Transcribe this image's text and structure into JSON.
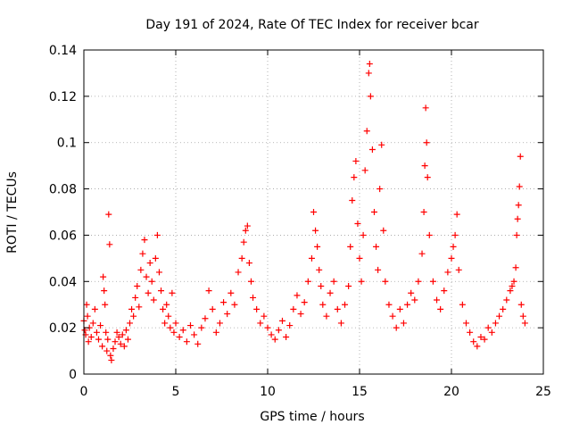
{
  "chart_data": {
    "type": "scatter",
    "title": "Day 191 of 2024, Rate Of TEC Index for receiver bcar",
    "xlabel": "GPS time / hours",
    "ylabel": "ROTI / TECUs",
    "xlim": [
      0,
      25
    ],
    "ylim": [
      0,
      0.14
    ],
    "xticks": [
      0,
      5,
      10,
      15,
      20,
      25
    ],
    "yticks": [
      0,
      0.02,
      0.04,
      0.06,
      0.08,
      0.1,
      0.12,
      0.14
    ],
    "xtick_labels": [
      "0",
      "5",
      "10",
      "15",
      "20",
      "25"
    ],
    "ytick_labels": [
      "0",
      "0.02",
      "0.04",
      "0.06",
      "0.08",
      "0.1",
      "0.12",
      "0.14"
    ],
    "grid": true,
    "marker": "+",
    "marker_color": "#ff0000",
    "series": [
      {
        "points": [
          [
            0.0,
            0.023
          ],
          [
            0.05,
            0.019
          ],
          [
            0.1,
            0.017
          ],
          [
            0.15,
            0.03
          ],
          [
            0.2,
            0.025
          ],
          [
            0.25,
            0.014
          ],
          [
            0.3,
            0.02
          ],
          [
            0.4,
            0.016
          ],
          [
            0.5,
            0.022
          ],
          [
            0.6,
            0.028
          ],
          [
            0.7,
            0.018
          ],
          [
            0.8,
            0.015
          ],
          [
            0.9,
            0.021
          ],
          [
            1.0,
            0.012
          ],
          [
            1.05,
            0.042
          ],
          [
            1.1,
            0.036
          ],
          [
            1.15,
            0.03
          ],
          [
            1.2,
            0.018
          ],
          [
            1.25,
            0.01
          ],
          [
            1.3,
            0.015
          ],
          [
            1.35,
            0.069
          ],
          [
            1.4,
            0.056
          ],
          [
            1.45,
            0.008
          ],
          [
            1.5,
            0.006
          ],
          [
            1.6,
            0.011
          ],
          [
            1.7,
            0.014
          ],
          [
            1.8,
            0.018
          ],
          [
            1.9,
            0.016
          ],
          [
            2.0,
            0.013
          ],
          [
            2.1,
            0.017
          ],
          [
            2.2,
            0.012
          ],
          [
            2.3,
            0.019
          ],
          [
            2.4,
            0.015
          ],
          [
            2.5,
            0.022
          ],
          [
            2.6,
            0.028
          ],
          [
            2.7,
            0.025
          ],
          [
            2.8,
            0.033
          ],
          [
            2.9,
            0.038
          ],
          [
            3.0,
            0.029
          ],
          [
            3.1,
            0.045
          ],
          [
            3.2,
            0.052
          ],
          [
            3.3,
            0.058
          ],
          [
            3.4,
            0.042
          ],
          [
            3.5,
            0.035
          ],
          [
            3.6,
            0.048
          ],
          [
            3.7,
            0.04
          ],
          [
            3.8,
            0.032
          ],
          [
            3.9,
            0.05
          ],
          [
            4.0,
            0.06
          ],
          [
            4.1,
            0.044
          ],
          [
            4.2,
            0.036
          ],
          [
            4.3,
            0.028
          ],
          [
            4.4,
            0.022
          ],
          [
            4.5,
            0.03
          ],
          [
            4.6,
            0.025
          ],
          [
            4.7,
            0.02
          ],
          [
            4.8,
            0.035
          ],
          [
            4.9,
            0.018
          ],
          [
            5.0,
            0.022
          ],
          [
            5.2,
            0.016
          ],
          [
            5.4,
            0.019
          ],
          [
            5.6,
            0.014
          ],
          [
            5.8,
            0.021
          ],
          [
            6.0,
            0.017
          ],
          [
            6.2,
            0.013
          ],
          [
            6.4,
            0.02
          ],
          [
            6.6,
            0.024
          ],
          [
            6.8,
            0.036
          ],
          [
            7.0,
            0.028
          ],
          [
            7.2,
            0.018
          ],
          [
            7.4,
            0.022
          ],
          [
            7.6,
            0.031
          ],
          [
            7.8,
            0.026
          ],
          [
            8.0,
            0.035
          ],
          [
            8.2,
            0.03
          ],
          [
            8.4,
            0.044
          ],
          [
            8.6,
            0.05
          ],
          [
            8.7,
            0.057
          ],
          [
            8.8,
            0.062
          ],
          [
            8.9,
            0.064
          ],
          [
            9.0,
            0.048
          ],
          [
            9.1,
            0.04
          ],
          [
            9.2,
            0.033
          ],
          [
            9.4,
            0.028
          ],
          [
            9.6,
            0.022
          ],
          [
            9.8,
            0.025
          ],
          [
            10.0,
            0.02
          ],
          [
            10.2,
            0.017
          ],
          [
            10.4,
            0.015
          ],
          [
            10.6,
            0.019
          ],
          [
            10.8,
            0.023
          ],
          [
            11.0,
            0.016
          ],
          [
            11.2,
            0.021
          ],
          [
            11.4,
            0.028
          ],
          [
            11.6,
            0.034
          ],
          [
            11.8,
            0.026
          ],
          [
            12.0,
            0.031
          ],
          [
            12.2,
            0.04
          ],
          [
            12.4,
            0.05
          ],
          [
            12.5,
            0.07
          ],
          [
            12.6,
            0.062
          ],
          [
            12.7,
            0.055
          ],
          [
            12.8,
            0.045
          ],
          [
            12.9,
            0.038
          ],
          [
            13.0,
            0.03
          ],
          [
            13.2,
            0.025
          ],
          [
            13.4,
            0.035
          ],
          [
            13.6,
            0.04
          ],
          [
            13.8,
            0.028
          ],
          [
            14.0,
            0.022
          ],
          [
            14.2,
            0.03
          ],
          [
            14.4,
            0.038
          ],
          [
            14.5,
            0.055
          ],
          [
            14.6,
            0.075
          ],
          [
            14.7,
            0.085
          ],
          [
            14.8,
            0.092
          ],
          [
            14.9,
            0.065
          ],
          [
            15.0,
            0.05
          ],
          [
            15.1,
            0.04
          ],
          [
            15.2,
            0.06
          ],
          [
            15.3,
            0.088
          ],
          [
            15.4,
            0.105
          ],
          [
            15.5,
            0.13
          ],
          [
            15.55,
            0.134
          ],
          [
            15.6,
            0.12
          ],
          [
            15.7,
            0.097
          ],
          [
            15.8,
            0.07
          ],
          [
            15.9,
            0.055
          ],
          [
            16.0,
            0.045
          ],
          [
            16.1,
            0.08
          ],
          [
            16.2,
            0.099
          ],
          [
            16.3,
            0.062
          ],
          [
            16.4,
            0.04
          ],
          [
            16.6,
            0.03
          ],
          [
            16.8,
            0.025
          ],
          [
            17.0,
            0.02
          ],
          [
            17.2,
            0.028
          ],
          [
            17.4,
            0.022
          ],
          [
            17.6,
            0.03
          ],
          [
            17.8,
            0.035
          ],
          [
            18.0,
            0.032
          ],
          [
            18.2,
            0.04
          ],
          [
            18.4,
            0.052
          ],
          [
            18.5,
            0.07
          ],
          [
            18.55,
            0.09
          ],
          [
            18.6,
            0.115
          ],
          [
            18.65,
            0.1
          ],
          [
            18.7,
            0.085
          ],
          [
            18.8,
            0.06
          ],
          [
            19.0,
            0.04
          ],
          [
            19.2,
            0.032
          ],
          [
            19.4,
            0.028
          ],
          [
            19.6,
            0.036
          ],
          [
            19.8,
            0.044
          ],
          [
            20.0,
            0.05
          ],
          [
            20.1,
            0.055
          ],
          [
            20.2,
            0.06
          ],
          [
            20.3,
            0.069
          ],
          [
            20.4,
            0.045
          ],
          [
            20.6,
            0.03
          ],
          [
            20.8,
            0.022
          ],
          [
            21.0,
            0.018
          ],
          [
            21.2,
            0.014
          ],
          [
            21.4,
            0.012
          ],
          [
            21.6,
            0.016
          ],
          [
            21.8,
            0.015
          ],
          [
            22.0,
            0.02
          ],
          [
            22.2,
            0.018
          ],
          [
            22.4,
            0.022
          ],
          [
            22.6,
            0.025
          ],
          [
            22.8,
            0.028
          ],
          [
            23.0,
            0.032
          ],
          [
            23.2,
            0.036
          ],
          [
            23.3,
            0.038
          ],
          [
            23.4,
            0.04
          ],
          [
            23.5,
            0.046
          ],
          [
            23.55,
            0.06
          ],
          [
            23.6,
            0.067
          ],
          [
            23.65,
            0.073
          ],
          [
            23.7,
            0.081
          ],
          [
            23.75,
            0.094
          ],
          [
            23.8,
            0.03
          ],
          [
            23.9,
            0.025
          ],
          [
            24.0,
            0.022
          ]
        ]
      }
    ]
  }
}
